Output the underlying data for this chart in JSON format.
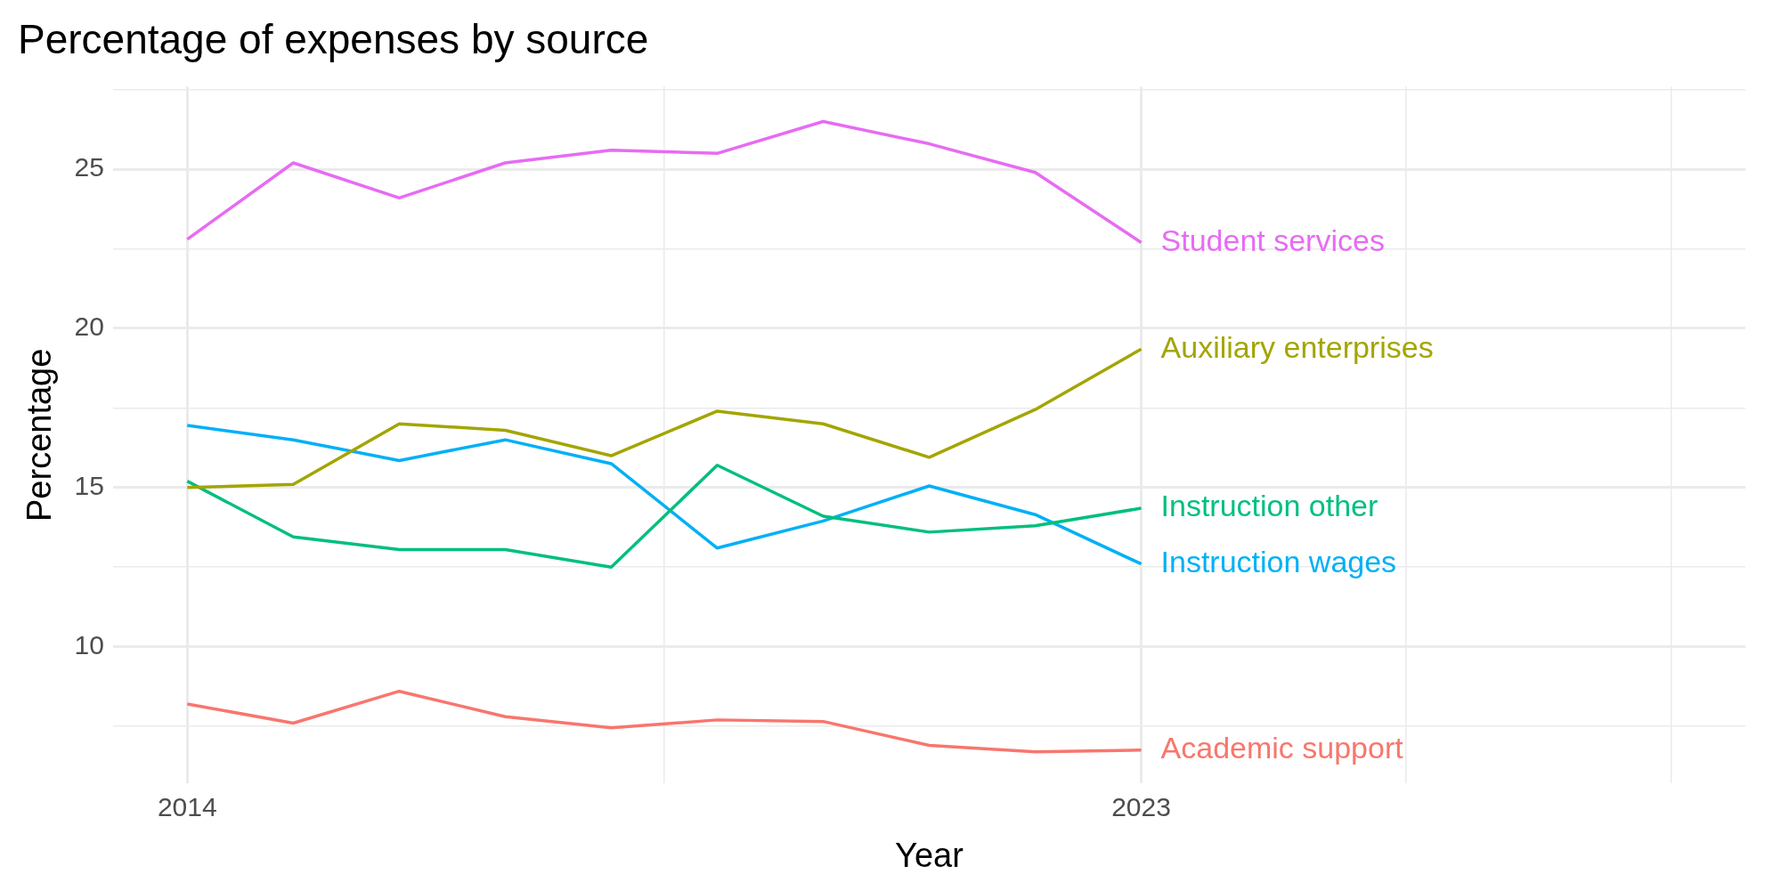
{
  "chart_data": {
    "type": "line",
    "title": "Percentage of expenses by source",
    "xlabel": "Year",
    "ylabel": "Percentage",
    "x": [
      2014,
      2015,
      2016,
      2017,
      2018,
      2019,
      2020,
      2021,
      2022,
      2023
    ],
    "series": [
      {
        "name": "Student services",
        "color": "#e76bf3",
        "values": [
          22.8,
          25.2,
          24.1,
          25.2,
          25.6,
          25.5,
          26.5,
          25.8,
          24.9,
          22.7
        ]
      },
      {
        "name": "Auxiliary enterprises",
        "color": "#a3a500",
        "values": [
          15.0,
          15.1,
          17.0,
          16.8,
          16.0,
          17.4,
          17.0,
          15.95,
          17.45,
          19.35
        ]
      },
      {
        "name": "Instruction other",
        "color": "#00bf7d",
        "values": [
          15.2,
          13.45,
          13.05,
          13.05,
          12.5,
          15.7,
          14.1,
          13.6,
          13.8,
          14.35
        ]
      },
      {
        "name": "Instruction wages",
        "color": "#00b0f6",
        "values": [
          16.95,
          16.5,
          15.85,
          16.5,
          15.75,
          13.1,
          13.95,
          15.05,
          14.15,
          12.6
        ]
      },
      {
        "name": "Academic support",
        "color": "#f8766d",
        "values": [
          8.2,
          7.6,
          8.6,
          7.8,
          7.45,
          7.7,
          7.65,
          6.9,
          6.7,
          6.75
        ]
      }
    ],
    "xlim": [
      2013.3,
      2028.7
    ],
    "xticks": [
      2014,
      {
        "value": 2018.5,
        "label": null
      },
      2023,
      {
        "value": 2025.5,
        "label": null
      },
      {
        "value": 2028,
        "label": null
      }
    ],
    "ylim": [
      5.7,
      27.6
    ],
    "yticks": [
      {
        "value": 7.5,
        "label": null
      },
      10,
      {
        "value": 12.5,
        "label": null
      },
      15,
      {
        "value": 17.5,
        "label": null
      },
      20,
      {
        "value": 22.5,
        "label": null
      },
      25,
      {
        "value": 27.5,
        "label": null
      }
    ],
    "grid": true,
    "legend": false,
    "marker": "none",
    "line_style": "solid"
  }
}
